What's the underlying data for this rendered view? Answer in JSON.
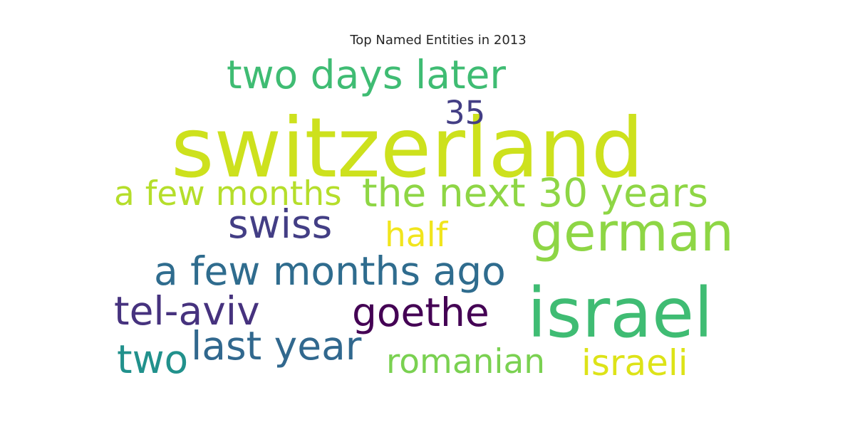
{
  "chart_data": {
    "type": "wordcloud",
    "title": "Top Named Entities in 2013",
    "words": [
      {
        "text": "switzerland",
        "weight": 100,
        "color": "#cde11d"
      },
      {
        "text": "israel",
        "weight": 60,
        "color": "#3fbc73"
      },
      {
        "text": "german",
        "weight": 50,
        "color": "#8ed645"
      },
      {
        "text": "two days later",
        "weight": 40,
        "color": "#3fbc73"
      },
      {
        "text": "the next 30 years",
        "weight": 40,
        "color": "#8ed645"
      },
      {
        "text": "a few months ago",
        "weight": 40,
        "color": "#2f6c8e"
      },
      {
        "text": "a few months",
        "weight": 38,
        "color": "#b5de2b"
      },
      {
        "text": "swiss",
        "weight": 38,
        "color": "#433e85"
      },
      {
        "text": "tel-aviv",
        "weight": 38,
        "color": "#46327e"
      },
      {
        "text": "goethe",
        "weight": 38,
        "color": "#440154"
      },
      {
        "text": "last year",
        "weight": 38,
        "color": "#31688e"
      },
      {
        "text": "two",
        "weight": 38,
        "color": "#21918c"
      },
      {
        "text": "israeli",
        "weight": 36,
        "color": "#dde318"
      },
      {
        "text": "romanian",
        "weight": 34,
        "color": "#7ad151"
      },
      {
        "text": "half",
        "weight": 34,
        "color": "#f1e51d"
      },
      {
        "text": "35",
        "weight": 32,
        "color": "#433e85"
      }
    ]
  }
}
